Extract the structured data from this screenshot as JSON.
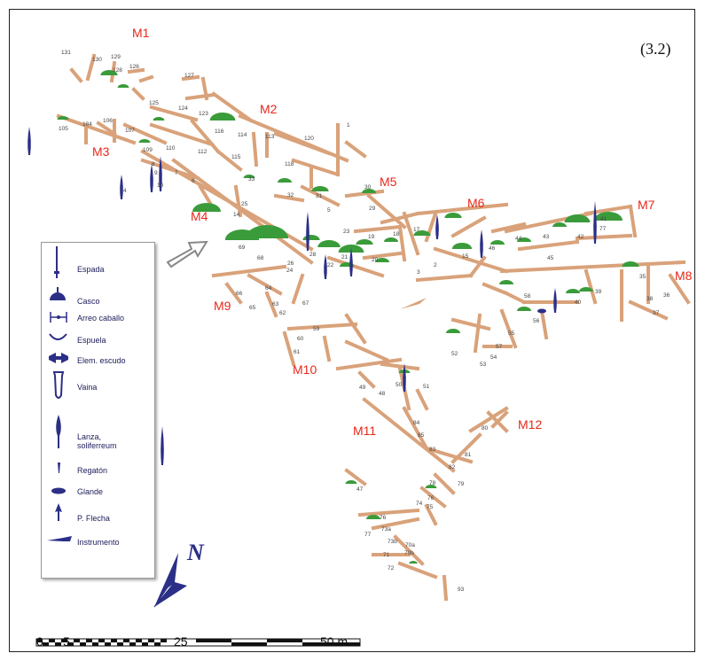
{
  "figure_label": "(3.2)",
  "sectors": [
    "M1",
    "M2",
    "M3",
    "M4",
    "M5",
    "M6",
    "M7",
    "M8",
    "M9",
    "M10",
    "M11",
    "M12"
  ],
  "room_numbers": [
    "131",
    "130",
    "129",
    "128",
    "126",
    "127",
    "105",
    "106",
    "104",
    "107",
    "125",
    "124",
    "123",
    "116",
    "114",
    "113",
    "120",
    "109",
    "110",
    "112",
    "115",
    "118",
    "8",
    "9",
    "10",
    "7",
    "6",
    "4",
    "1",
    "33",
    "32",
    "31",
    "30",
    "29",
    "25",
    "14",
    "5",
    "69",
    "68",
    "26",
    "28",
    "21",
    "22",
    "23",
    "19",
    "18",
    "17",
    "20",
    "3",
    "2",
    "15",
    "46",
    "44",
    "43",
    "45",
    "42",
    "41",
    "77",
    "39",
    "40",
    "35",
    "38",
    "37",
    "36",
    "24",
    "64",
    "63",
    "62",
    "65",
    "66",
    "67",
    "58",
    "56",
    "55",
    "57",
    "54",
    "53",
    "52",
    "59",
    "60",
    "61",
    "49",
    "48",
    "50",
    "51",
    "84",
    "85",
    "83",
    "82",
    "80",
    "81",
    "79",
    "78",
    "76",
    "75",
    "74",
    "47",
    "76",
    "73a",
    "73b",
    "77",
    "70a",
    "70b",
    "71",
    "72",
    "93"
  ],
  "legend": {
    "items": [
      {
        "label": "Espada",
        "icon": "sword-icon"
      },
      {
        "label": "Casco",
        "icon": "helmet-icon"
      },
      {
        "label": "Arreo caballo",
        "icon": "horse-bit-icon"
      },
      {
        "label": "Espuela",
        "icon": "spur-icon"
      },
      {
        "label": "Elem. escudo",
        "icon": "shield-element-icon"
      },
      {
        "label": "Vaina",
        "icon": "scabbard-icon"
      },
      {
        "label": "Lanza,",
        "label2": "soliferreum",
        "icon": "spear-icon"
      },
      {
        "label": "Regatón",
        "icon": "ferrule-icon"
      },
      {
        "label": "Glande",
        "icon": "sling-bullet-icon"
      },
      {
        "label": "P. Flecha",
        "icon": "arrowhead-icon"
      },
      {
        "label": "Instrumento",
        "icon": "tool-icon"
      }
    ]
  },
  "north_arrow": {
    "letter": "N"
  },
  "scale_bar": {
    "ticks": [
      "0",
      "5",
      "25",
      "50 m."
    ]
  },
  "colors": {
    "walls": "#d9a27a",
    "finds": "#2b2f86",
    "stone_mounds": "#3a9b3a",
    "sector_labels": "#e8271a"
  }
}
